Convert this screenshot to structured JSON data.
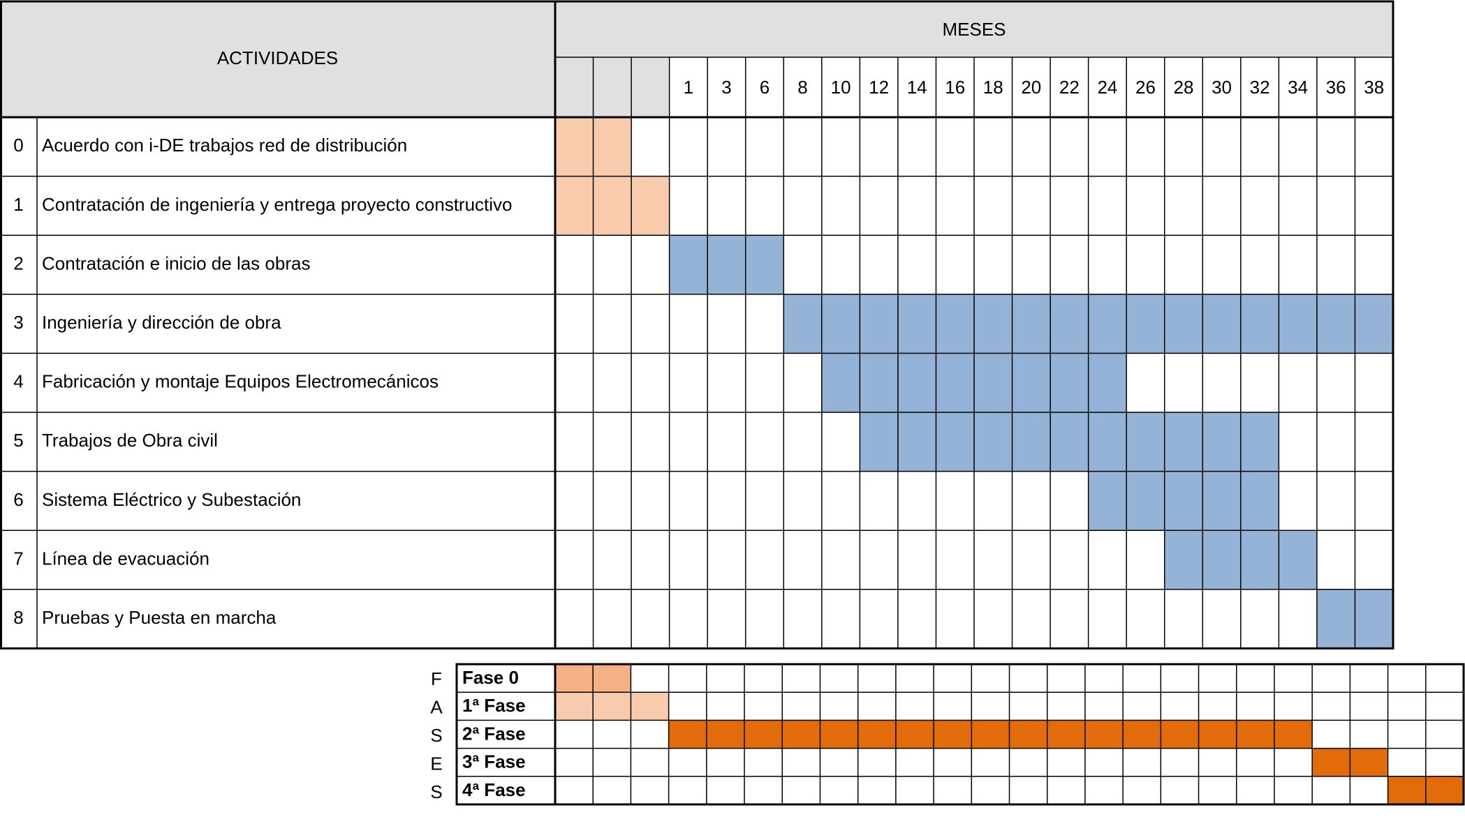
{
  "chart_data": {
    "type": "table",
    "main_table": {
      "activities_header": "ACTIVIDADES",
      "months_header": "MESES",
      "month_labels": [
        "",
        "",
        "",
        "1",
        "3",
        "6",
        "8",
        "10",
        "12",
        "14",
        "16",
        "18",
        "20",
        "22",
        "24",
        "26",
        "28",
        "30",
        "32",
        "34",
        "36",
        "38"
      ],
      "rows": [
        {
          "num": "0",
          "label": "Acuerdo con i-DE trabajos red de distribución",
          "cells": [
            1,
            1,
            0,
            0,
            0,
            0,
            0,
            0,
            0,
            0,
            0,
            0,
            0,
            0,
            0,
            0,
            0,
            0,
            0,
            0,
            0,
            0
          ]
        },
        {
          "num": "1",
          "label": "Contratación de ingeniería y entrega proyecto constructivo",
          "cells": [
            1,
            1,
            1,
            0,
            0,
            0,
            0,
            0,
            0,
            0,
            0,
            0,
            0,
            0,
            0,
            0,
            0,
            0,
            0,
            0,
            0,
            0
          ]
        },
        {
          "num": "2",
          "label": "Contratación e inicio de las obras",
          "cells": [
            0,
            0,
            0,
            2,
            2,
            2,
            0,
            0,
            0,
            0,
            0,
            0,
            0,
            0,
            0,
            0,
            0,
            0,
            0,
            0,
            0,
            0
          ]
        },
        {
          "num": "3",
          "label": "Ingeniería y dirección de obra",
          "cells": [
            0,
            0,
            0,
            0,
            0,
            0,
            2,
            2,
            2,
            2,
            2,
            2,
            2,
            2,
            2,
            2,
            2,
            2,
            2,
            2,
            2,
            2
          ]
        },
        {
          "num": "4",
          "label": "Fabricación y montaje Equipos Electromecánicos",
          "cells": [
            0,
            0,
            0,
            0,
            0,
            0,
            0,
            2,
            2,
            2,
            2,
            2,
            2,
            2,
            2,
            0,
            0,
            0,
            0,
            0,
            0,
            0
          ]
        },
        {
          "num": "5",
          "label": "Trabajos de Obra civil",
          "cells": [
            0,
            0,
            0,
            0,
            0,
            0,
            0,
            0,
            2,
            2,
            2,
            2,
            2,
            2,
            2,
            2,
            2,
            2,
            2,
            0,
            0,
            0
          ]
        },
        {
          "num": "6",
          "label": "Sistema Eléctrico y Subestación",
          "cells": [
            0,
            0,
            0,
            0,
            0,
            0,
            0,
            0,
            0,
            0,
            0,
            0,
            0,
            0,
            2,
            2,
            2,
            2,
            2,
            0,
            0,
            0
          ]
        },
        {
          "num": "7",
          "label": "Línea de evacuación",
          "cells": [
            0,
            0,
            0,
            0,
            0,
            0,
            0,
            0,
            0,
            0,
            0,
            0,
            0,
            0,
            0,
            0,
            2,
            2,
            2,
            2,
            0,
            0
          ]
        },
        {
          "num": "8",
          "label": "Pruebas y Puesta en marcha",
          "cells": [
            0,
            0,
            0,
            0,
            0,
            0,
            0,
            0,
            0,
            0,
            0,
            0,
            0,
            0,
            0,
            0,
            0,
            0,
            0,
            0,
            2,
            2
          ]
        }
      ]
    },
    "phases_table": {
      "side_label_letters": [
        "F",
        "A",
        "S",
        "E",
        "S"
      ],
      "rows": [
        {
          "label": "Fase 0",
          "cells": [
            3,
            3,
            0,
            0,
            0,
            0,
            0,
            0,
            0,
            0,
            0,
            0,
            0,
            0,
            0,
            0,
            0,
            0,
            0,
            0,
            0,
            0,
            0,
            0
          ]
        },
        {
          "label": "1ª Fase",
          "cells": [
            1,
            1,
            1,
            0,
            0,
            0,
            0,
            0,
            0,
            0,
            0,
            0,
            0,
            0,
            0,
            0,
            0,
            0,
            0,
            0,
            0,
            0,
            0,
            0
          ]
        },
        {
          "label": "2ª Fase",
          "cells": [
            0,
            0,
            0,
            4,
            4,
            4,
            4,
            4,
            4,
            4,
            4,
            4,
            4,
            4,
            4,
            4,
            4,
            4,
            4,
            4,
            0,
            0,
            0,
            0
          ]
        },
        {
          "label": "3ª Fase",
          "cells": [
            0,
            0,
            0,
            0,
            0,
            0,
            0,
            0,
            0,
            0,
            0,
            0,
            0,
            0,
            0,
            0,
            0,
            0,
            0,
            0,
            4,
            4,
            0,
            0
          ]
        },
        {
          "label": "4ª Fase",
          "cells": [
            0,
            0,
            0,
            0,
            0,
            0,
            0,
            0,
            0,
            0,
            0,
            0,
            0,
            0,
            0,
            0,
            0,
            0,
            0,
            0,
            0,
            0,
            4,
            4
          ]
        }
      ]
    },
    "colors": {
      "0": "#ffffff",
      "1": "#f8cbad",
      "2": "#95b3d7",
      "3": "#f4b183",
      "4": "#e26b0a",
      "header_bg": "#e0e0e0"
    }
  }
}
